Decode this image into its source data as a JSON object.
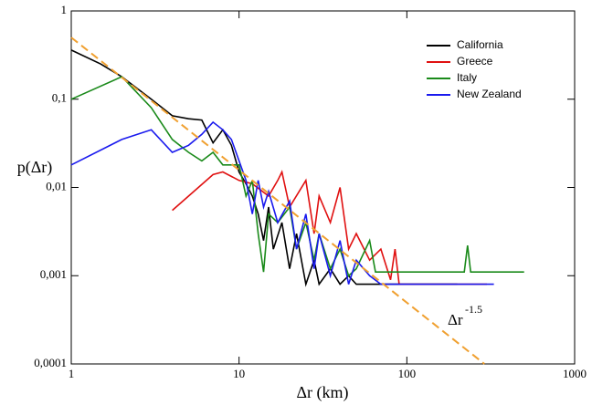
{
  "chart_data": {
    "type": "line",
    "xlabel": "Δr (km)",
    "ylabel": "p(Δr)",
    "xscale": "log",
    "yscale": "log",
    "xlim": [
      1,
      1000
    ],
    "ylim": [
      0.0001,
      1
    ],
    "xticks": [
      1,
      10,
      100,
      1000
    ],
    "yticks": [
      {
        "value": 0.0001,
        "label": "0,0001"
      },
      {
        "value": 0.001,
        "label": "0,001"
      },
      {
        "value": 0.01,
        "label": "0,01"
      },
      {
        "value": 0.1,
        "label": "0,1"
      },
      1
    ],
    "legend": "upper right",
    "series": [
      {
        "name": "California",
        "color": "#000000",
        "x": [
          1,
          1.5,
          2,
          3,
          4,
          5,
          6,
          7,
          8,
          9,
          10,
          11,
          12,
          13,
          14,
          15,
          16,
          18,
          20,
          22,
          25,
          28,
          30,
          35,
          40,
          45,
          50,
          60,
          80,
          100,
          150,
          200
        ],
        "values": [
          0.36,
          0.25,
          0.18,
          0.1,
          0.065,
          0.06,
          0.058,
          0.032,
          0.045,
          0.03,
          0.015,
          0.011,
          0.008,
          0.005,
          0.0025,
          0.006,
          0.002,
          0.004,
          0.0012,
          0.003,
          0.0008,
          0.0015,
          0.0008,
          0.0012,
          0.0008,
          0.001,
          0.0008,
          0.0008,
          0.0008,
          0.0008,
          0.0008,
          0.0008
        ]
      },
      {
        "name": "Greece",
        "color": "#e01010",
        "x": [
          4,
          7,
          8,
          10,
          12,
          15,
          17,
          18,
          20,
          25,
          28,
          30,
          35,
          40,
          45,
          50,
          60,
          70,
          80,
          85,
          90,
          120,
          200,
          300
        ],
        "values": [
          0.0055,
          0.014,
          0.015,
          0.012,
          0.011,
          0.008,
          0.012,
          0.015,
          0.006,
          0.012,
          0.003,
          0.008,
          0.004,
          0.01,
          0.002,
          0.003,
          0.0015,
          0.002,
          0.0009,
          0.002,
          0.0008,
          0.0008,
          0.0008,
          0.0008
        ]
      },
      {
        "name": "Italy",
        "color": "#1a8a1a",
        "x": [
          1,
          2,
          3,
          4,
          5,
          6,
          7,
          8,
          10,
          11,
          12,
          13,
          14,
          15,
          17,
          20,
          22,
          25,
          28,
          30,
          35,
          40,
          45,
          50,
          60,
          65,
          70,
          80,
          100,
          200,
          220,
          230,
          240,
          500
        ],
        "values": [
          0.1,
          0.18,
          0.08,
          0.035,
          0.025,
          0.02,
          0.025,
          0.018,
          0.018,
          0.008,
          0.012,
          0.003,
          0.0011,
          0.005,
          0.004,
          0.006,
          0.002,
          0.004,
          0.0015,
          0.003,
          0.0012,
          0.002,
          0.001,
          0.0012,
          0.0025,
          0.0011,
          0.0011,
          0.0011,
          0.0011,
          0.0011,
          0.0011,
          0.0022,
          0.0011,
          0.0011
        ]
      },
      {
        "name": "New Zealand",
        "color": "#1a1aee",
        "x": [
          1,
          2,
          3,
          4,
          5,
          6,
          7,
          8,
          9,
          10,
          11,
          12,
          13,
          14,
          15,
          17,
          20,
          22,
          25,
          28,
          30,
          35,
          40,
          45,
          50,
          60,
          70,
          100,
          330
        ],
        "values": [
          0.018,
          0.035,
          0.045,
          0.025,
          0.03,
          0.04,
          0.055,
          0.045,
          0.035,
          0.02,
          0.012,
          0.005,
          0.012,
          0.006,
          0.009,
          0.004,
          0.007,
          0.002,
          0.005,
          0.0012,
          0.003,
          0.001,
          0.0025,
          0.0008,
          0.0015,
          0.001,
          0.0008,
          0.0008,
          0.0008
        ]
      }
    ],
    "fit_line": {
      "color": "#f0a030",
      "x": [
        1,
        290
      ],
      "values": [
        0.5,
        0.0001
      ]
    },
    "annotation": {
      "text": "Δr",
      "superscript": "-1.5"
    }
  }
}
